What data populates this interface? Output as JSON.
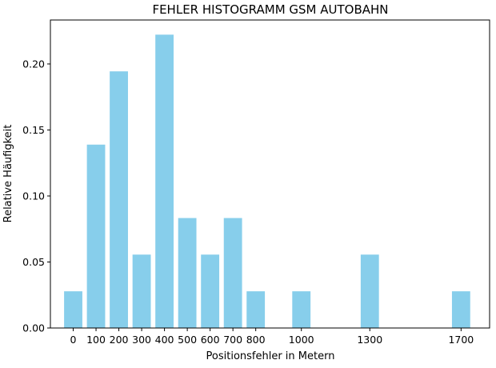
{
  "chart_data": {
    "type": "bar",
    "title": "FEHLER HISTOGRAMM GSM AUTOBAHN",
    "xlabel": "Positionsfehler in Metern",
    "ylabel": "Relative Häufigkeit",
    "bar_color": "#87ceeb",
    "grid": false,
    "x": [
      0,
      100,
      200,
      300,
      400,
      500,
      600,
      700,
      800,
      1000,
      1300,
      1700
    ],
    "values": [
      0.0278,
      0.1389,
      0.1944,
      0.0556,
      0.2222,
      0.0833,
      0.0556,
      0.0833,
      0.0278,
      0.0278,
      0.0556,
      0.0278
    ],
    "bar_width": 80,
    "xlim": [
      -100,
      1825
    ],
    "ylim": [
      0,
      0.2333
    ],
    "xticks": [
      0,
      100,
      200,
      300,
      400,
      500,
      600,
      700,
      800,
      1000,
      1300,
      1700
    ],
    "xtick_labels": [
      "0",
      "100",
      "200",
      "300",
      "400",
      "500",
      "600",
      "700",
      "800",
      "1000",
      "1300",
      "1700"
    ],
    "yticks": [
      0,
      0.05,
      0.1,
      0.15,
      0.2
    ],
    "ytick_labels": [
      "0.00",
      "0.05",
      "0.10",
      "0.15",
      "0.20"
    ]
  }
}
